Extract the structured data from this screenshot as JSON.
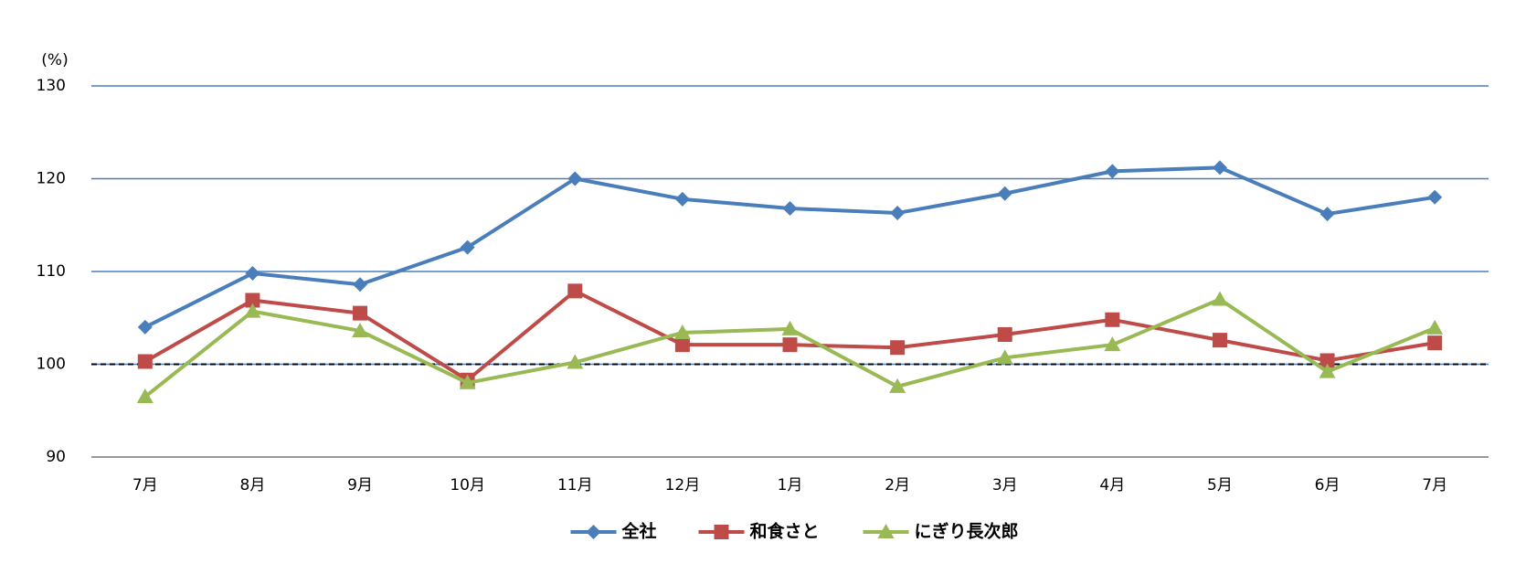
{
  "chart_data": {
    "type": "line",
    "y_unit": "(%)",
    "categories": [
      "7月",
      "8月",
      "9月",
      "10月",
      "11月",
      "12月",
      "1月",
      "2月",
      "3月",
      "4月",
      "5月",
      "6月",
      "7月"
    ],
    "series": [
      {
        "name": "全社",
        "color": "#4a7ebb",
        "marker": "diamond",
        "values": [
          104.0,
          109.8,
          108.6,
          112.6,
          120.0,
          117.8,
          116.8,
          116.3,
          118.4,
          120.8,
          121.2,
          116.2,
          118.0
        ]
      },
      {
        "name": "和食さと",
        "color": "#be4b48",
        "marker": "square",
        "values": [
          100.3,
          106.9,
          105.5,
          98.3,
          107.9,
          102.1,
          102.1,
          101.8,
          103.2,
          104.8,
          102.6,
          100.4,
          102.3
        ]
      },
      {
        "name": "にぎり長次郎",
        "color": "#98b954",
        "marker": "triangle",
        "values": [
          96.5,
          105.7,
          103.6,
          98.0,
          100.2,
          103.4,
          103.8,
          97.6,
          100.7,
          102.1,
          107.0,
          99.2,
          103.9
        ]
      }
    ],
    "ylim": [
      90,
      130
    ],
    "yticks": [
      90,
      100,
      110,
      120,
      130
    ],
    "grid": true,
    "grid_color": "#4a7ebb",
    "reference_line": 100,
    "legend": "bottom"
  }
}
